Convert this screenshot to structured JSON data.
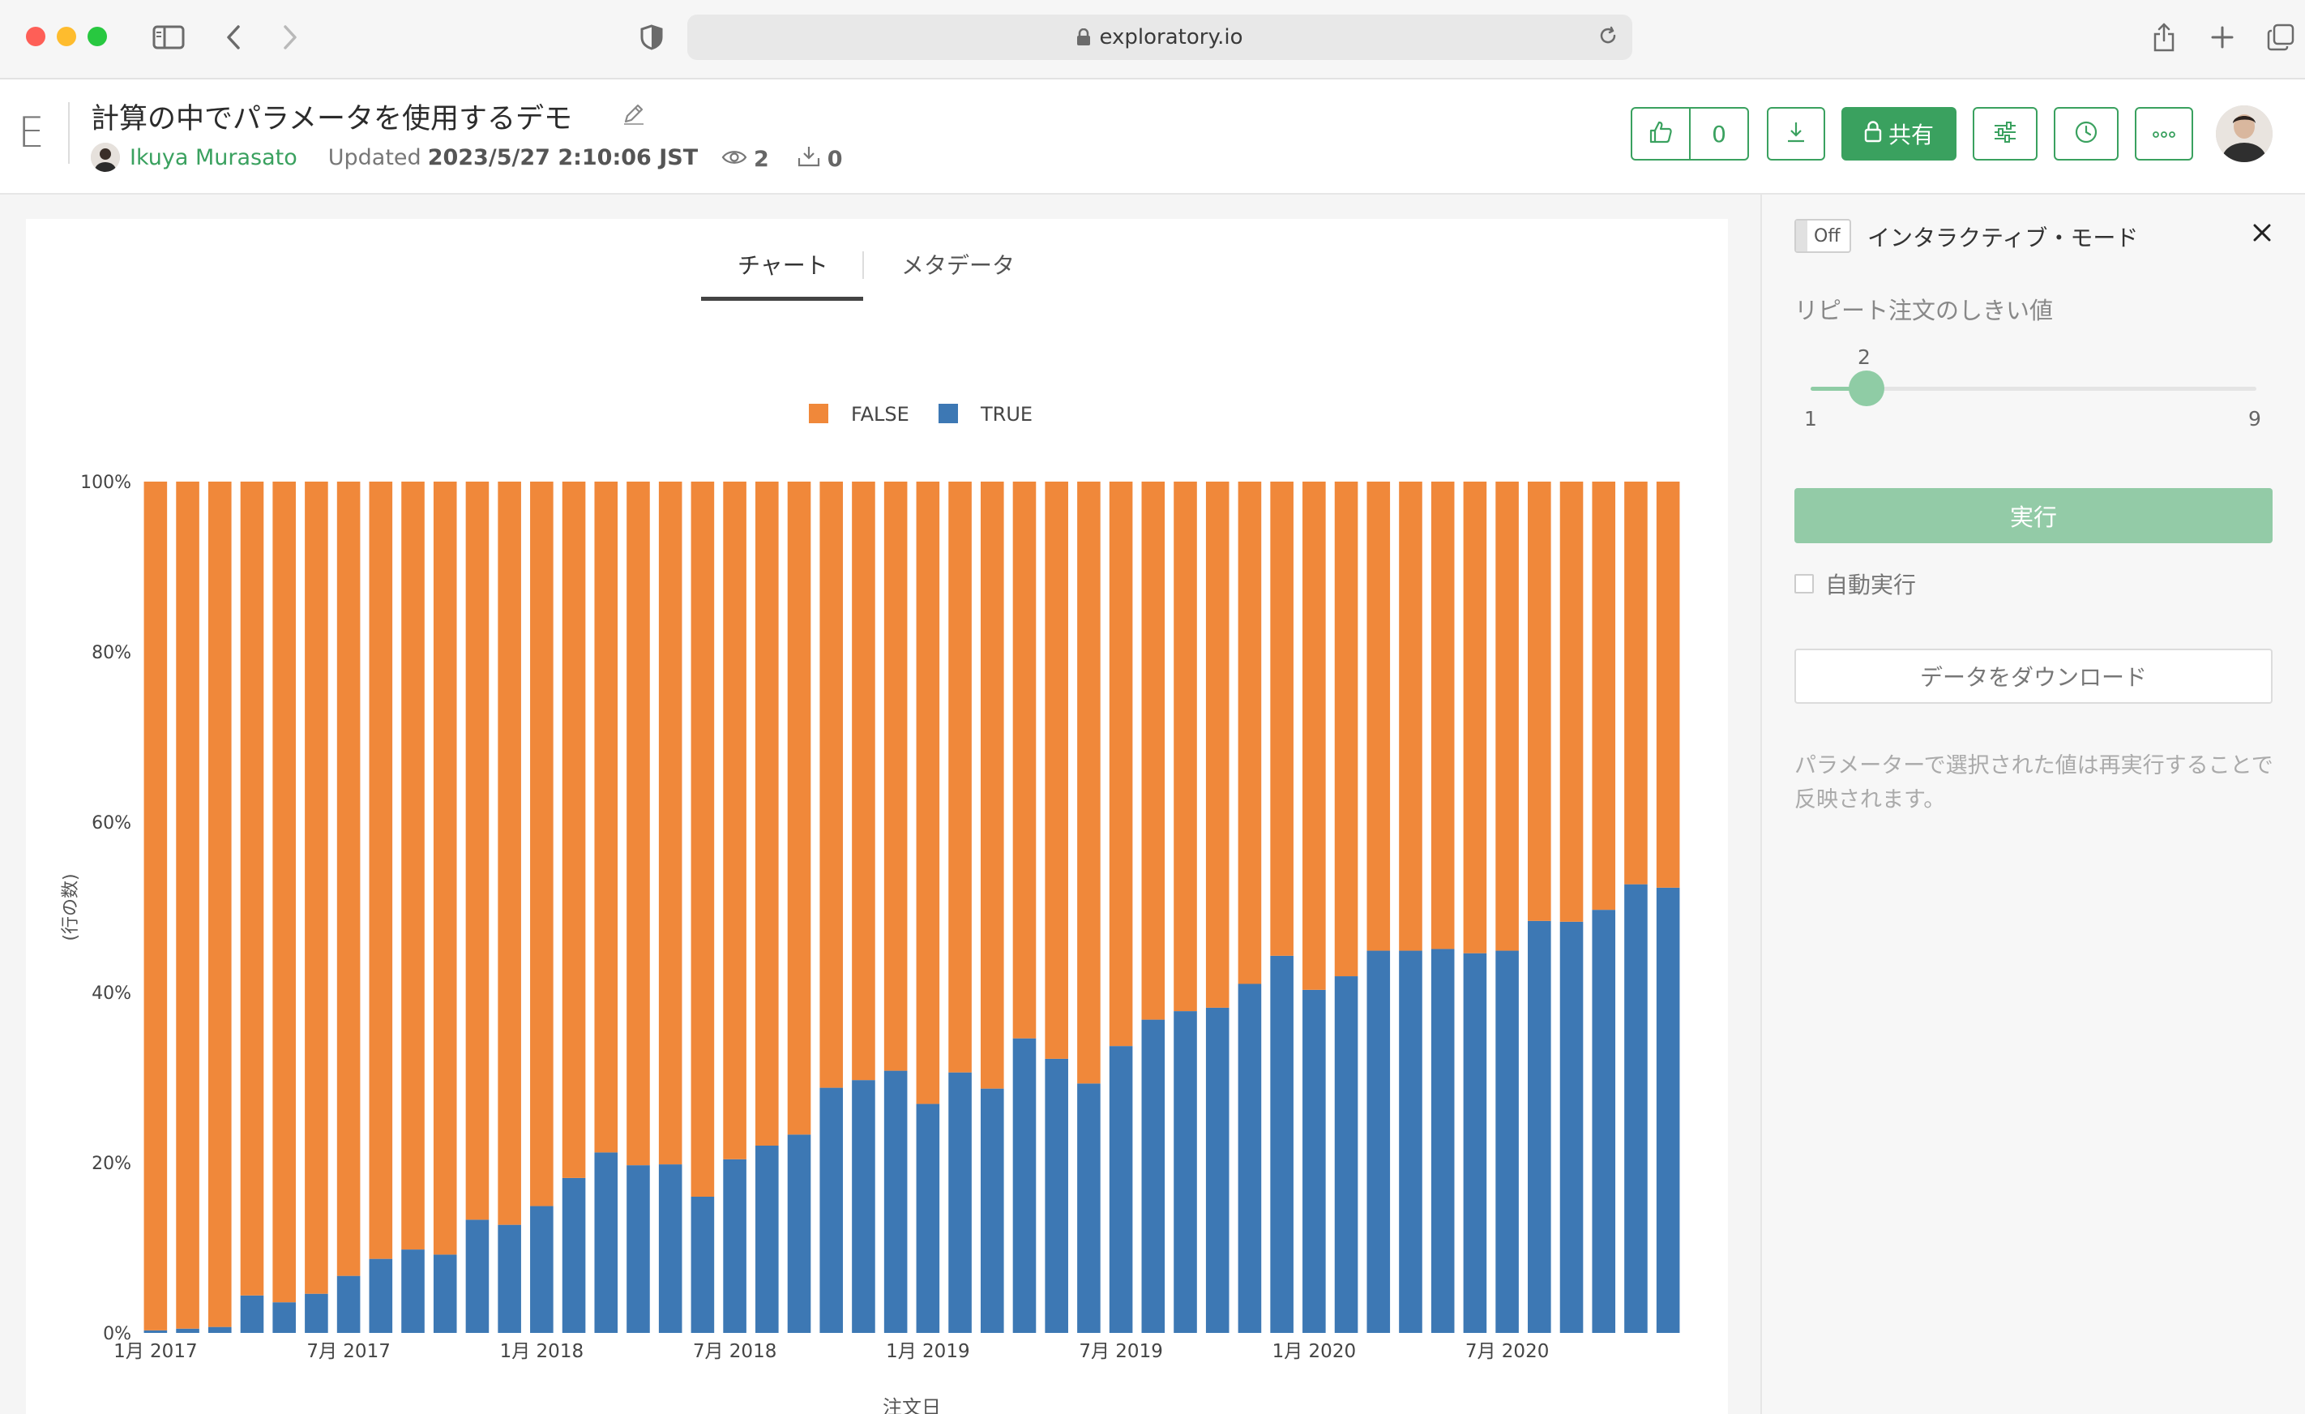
{
  "browser": {
    "url": "exploratory.io"
  },
  "header": {
    "logo": "E",
    "title": "計算の中でパラメータを使用するデモ",
    "author": "Ikuya Murasato",
    "updated_label": "Updated",
    "updated_value": "2023/5/27 2:10:06 JST",
    "views": "2",
    "downloads": "0",
    "likes": "0",
    "share_label": "共有"
  },
  "tabs": [
    {
      "label": "チャート",
      "active": true
    },
    {
      "label": "メタデータ",
      "active": false
    }
  ],
  "colors": {
    "false": "#f0883a",
    "true": "#3d78b4",
    "accent": "#3aa15f"
  },
  "chart_data": {
    "type": "bar",
    "stacked": true,
    "normalized": true,
    "legend_position": "top",
    "legend": [
      "FALSE",
      "TRUE"
    ],
    "xlabel": "注文日",
    "ylabel": "(行の数)",
    "ylim": [
      0,
      100
    ],
    "y_ticks": [
      "0%",
      "20%",
      "40%",
      "60%",
      "80%",
      "100%"
    ],
    "x_tick_labels": [
      {
        "label": "1月 2017",
        "index": 0
      },
      {
        "label": "7月 2017",
        "index": 6
      },
      {
        "label": "1月 2018",
        "index": 12
      },
      {
        "label": "7月 2018",
        "index": 18
      },
      {
        "label": "1月 2019",
        "index": 24
      },
      {
        "label": "7月 2019",
        "index": 30
      },
      {
        "label": "1月 2020",
        "index": 36
      },
      {
        "label": "7月 2020",
        "index": 42
      }
    ],
    "categories": [
      "2017-01",
      "2017-02",
      "2017-03",
      "2017-04",
      "2017-05",
      "2017-06",
      "2017-07",
      "2017-08",
      "2017-09",
      "2017-10",
      "2017-11",
      "2017-12",
      "2018-01",
      "2018-02",
      "2018-03",
      "2018-04",
      "2018-05",
      "2018-06",
      "2018-07",
      "2018-08",
      "2018-09",
      "2018-10",
      "2018-11",
      "2018-12",
      "2019-01",
      "2019-02",
      "2019-03",
      "2019-04",
      "2019-05",
      "2019-06",
      "2019-07",
      "2019-08",
      "2019-09",
      "2019-10",
      "2019-11",
      "2019-12",
      "2020-01",
      "2020-02",
      "2020-03",
      "2020-04",
      "2020-05",
      "2020-06",
      "2020-07",
      "2020-08",
      "2020-09",
      "2020-10",
      "2020-11",
      "2020-12"
    ],
    "series": [
      {
        "name": "TRUE",
        "values": [
          0.3,
          0.5,
          0.7,
          4.4,
          3.6,
          4.6,
          6.7,
          8.7,
          9.8,
          9.2,
          13.3,
          12.7,
          14.9,
          18.2,
          21.2,
          19.7,
          19.8,
          16.0,
          20.4,
          22.0,
          23.3,
          28.8,
          29.7,
          30.8,
          26.9,
          30.6,
          28.7,
          34.6,
          32.2,
          29.3,
          33.7,
          36.8,
          37.8,
          38.2,
          41.0,
          44.3,
          40.3,
          41.9,
          44.9,
          44.9,
          45.1,
          44.6,
          44.9,
          48.4,
          48.3,
          49.7,
          52.7,
          52.3
        ]
      },
      {
        "name": "FALSE",
        "values": [
          99.7,
          99.5,
          99.3,
          95.6,
          96.4,
          95.4,
          93.3,
          91.3,
          90.2,
          90.8,
          86.7,
          87.3,
          85.1,
          81.8,
          78.8,
          80.3,
          80.2,
          84.0,
          79.6,
          78.0,
          76.7,
          71.2,
          70.3,
          69.2,
          73.1,
          69.4,
          71.3,
          65.4,
          67.8,
          70.7,
          66.3,
          63.2,
          62.2,
          61.8,
          59.0,
          55.7,
          59.7,
          58.1,
          55.1,
          55.1,
          54.9,
          55.4,
          55.1,
          51.6,
          51.7,
          50.3,
          47.3,
          47.7
        ]
      }
    ]
  },
  "panel": {
    "toggle_label": "Off",
    "mode_label": "インタラクティブ・モード",
    "param_label": "リピート注文のしきい値",
    "slider": {
      "value": "2",
      "min": "1",
      "max": "9"
    },
    "run_label": "実行",
    "auto_run_label": "自動実行",
    "download_label": "データをダウンロード",
    "note": "パラメーターで選択された値は再実行することで反映されます。"
  }
}
